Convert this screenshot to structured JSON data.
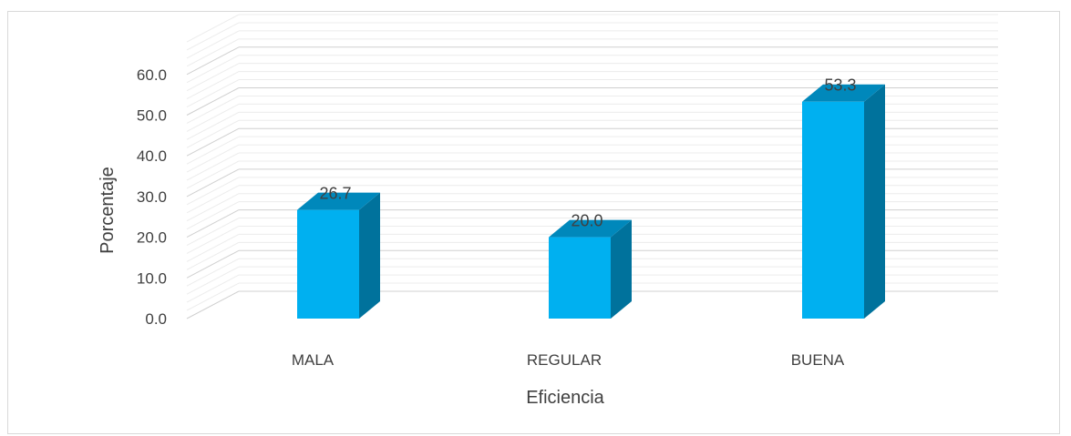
{
  "chart_data": {
    "type": "bar",
    "style": "3d-column",
    "categories": [
      "MALA",
      "REGULAR",
      "BUENA"
    ],
    "values": [
      26.7,
      20.0,
      53.3
    ],
    "data_labels": [
      "26.7",
      "20.0",
      "53.3"
    ],
    "title": "",
    "xlabel": "Eficiencia",
    "ylabel": "Porcentaje",
    "ylim": [
      0,
      60
    ],
    "yticks": [
      "0.0",
      "10.0",
      "20.0",
      "30.0",
      "40.0",
      "50.0",
      "60.0"
    ],
    "ytick_values": [
      0,
      10,
      20,
      30,
      40,
      50,
      60
    ],
    "grid": true,
    "legend": "none",
    "colors": {
      "bar_front": "#00B0F0",
      "bar_side": "#00729C",
      "bar_top": "#0088BB",
      "grid": "#d9d9d9"
    }
  }
}
